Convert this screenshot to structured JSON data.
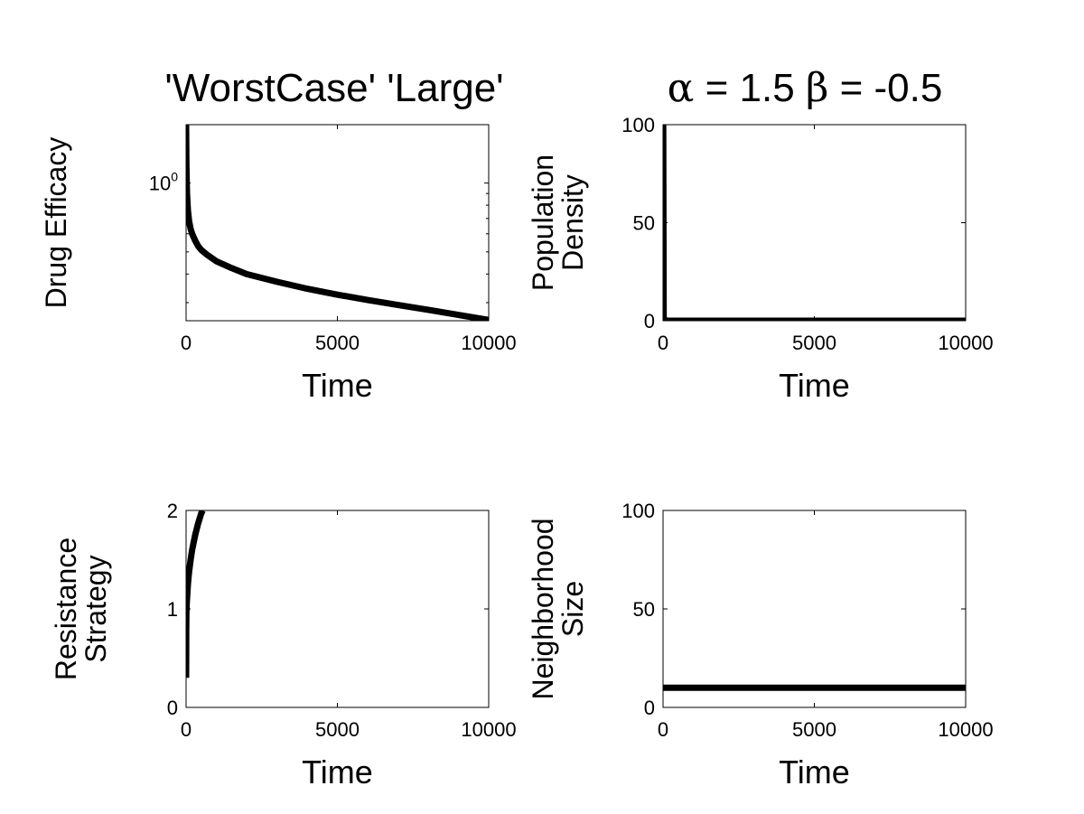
{
  "figure": {
    "left_title": "'WorstCase' 'Large'",
    "right_title": {
      "alpha_symbol": "α",
      "alpha_text": " = 1.5 ",
      "beta_symbol": "β",
      "beta_text": " = -0.5"
    }
  },
  "chart_data": [
    {
      "id": "drug-efficacy",
      "type": "line",
      "xlabel": "Time",
      "ylabel": [
        "Drug Efficacy"
      ],
      "xlim": [
        0,
        10000
      ],
      "ylim": [
        0.25,
        1.8
      ],
      "yscale": "log",
      "xticks": [
        0,
        5000,
        10000
      ],
      "xtick_labels": [
        "0",
        "5000",
        "10000"
      ],
      "yticks": [
        1
      ],
      "ytick_labels": [
        {
          "base": "10",
          "exp": "0"
        }
      ],
      "grid": false,
      "series": [
        {
          "x": [
            0,
            10,
            30,
            60,
            100,
            150,
            200,
            300,
            400,
            500,
            700,
            1000,
            1500,
            2000,
            3000,
            4000,
            5000,
            6000,
            7000,
            8000,
            9000,
            10000
          ],
          "y": [
            1.8,
            1.2,
            0.9,
            0.76,
            0.68,
            0.63,
            0.6,
            0.56,
            0.53,
            0.51,
            0.485,
            0.455,
            0.425,
            0.4,
            0.37,
            0.345,
            0.325,
            0.308,
            0.293,
            0.279,
            0.265,
            0.252
          ]
        }
      ]
    },
    {
      "id": "population-density",
      "type": "line",
      "xlabel": "Time",
      "ylabel": [
        "Population",
        "Density"
      ],
      "xlim": [
        0,
        10000
      ],
      "ylim": [
        0,
        100
      ],
      "yscale": "linear",
      "xticks": [
        0,
        5000,
        10000
      ],
      "xtick_labels": [
        "0",
        "5000",
        "10000"
      ],
      "yticks": [
        0,
        50,
        100
      ],
      "ytick_labels": [
        "0",
        "50",
        "100"
      ],
      "grid": false,
      "series": [
        {
          "x": [
            0,
            5,
            20,
            50,
            10000
          ],
          "y": [
            100,
            100,
            2,
            0,
            0
          ]
        }
      ]
    },
    {
      "id": "resistance-strategy",
      "type": "line",
      "xlabel": "Time",
      "ylabel": [
        "Resistance",
        "Strategy"
      ],
      "xlim": [
        0,
        10000
      ],
      "ylim": [
        0,
        2
      ],
      "yscale": "linear",
      "xticks": [
        0,
        5000,
        10000
      ],
      "xtick_labels": [
        "0",
        "5000",
        "10000"
      ],
      "yticks": [
        0,
        1,
        2
      ],
      "ytick_labels": [
        "0",
        "1",
        "2"
      ],
      "grid": false,
      "series": [
        {
          "x": [
            0,
            5,
            10,
            20,
            40,
            60,
            80,
            100,
            150,
            200,
            300,
            400,
            500,
            550
          ],
          "y": [
            0.3,
            0.8,
            0.95,
            1.05,
            1.15,
            1.25,
            1.32,
            1.38,
            1.5,
            1.6,
            1.75,
            1.87,
            1.97,
            2.0
          ]
        }
      ]
    },
    {
      "id": "neighborhood-size",
      "type": "line",
      "xlabel": "Time",
      "ylabel": [
        "Neighborhood",
        "Size"
      ],
      "xlim": [
        0,
        10000
      ],
      "ylim": [
        0,
        100
      ],
      "yscale": "linear",
      "xticks": [
        0,
        5000,
        10000
      ],
      "xtick_labels": [
        "0",
        "5000",
        "10000"
      ],
      "yticks": [
        0,
        50,
        100
      ],
      "ytick_labels": [
        "0",
        "50",
        "100"
      ],
      "grid": false,
      "series": [
        {
          "x": [
            0,
            10000
          ],
          "y": [
            10,
            10
          ]
        }
      ]
    }
  ]
}
